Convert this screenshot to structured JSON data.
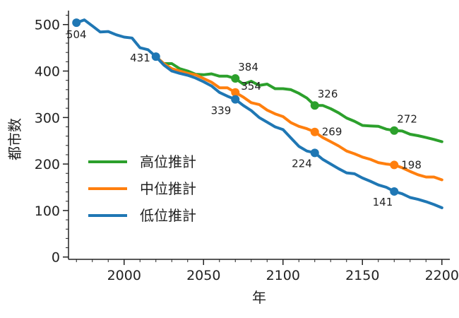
{
  "chart_data": {
    "type": "line",
    "title": "",
    "xlabel": "年",
    "ylabel": "都市数",
    "xlim": [
      1965,
      2205
    ],
    "ylim": [
      -5,
      530
    ],
    "x_ticks": [
      2000,
      2050,
      2100,
      2150,
      2200
    ],
    "y_ticks": [
      0,
      100,
      200,
      300,
      400,
      500
    ],
    "grid": false,
    "legend_position": "bottom-left",
    "series": [
      {
        "name": "高位推計",
        "color": "#2ca02c",
        "x": [
          2020,
          2025,
          2030,
          2035,
          2040,
          2045,
          2050,
          2055,
          2060,
          2065,
          2070,
          2075,
          2080,
          2085,
          2090,
          2095,
          2100,
          2105,
          2110,
          2115,
          2120,
          2125,
          2130,
          2135,
          2140,
          2145,
          2150,
          2155,
          2160,
          2165,
          2170,
          2175,
          2180,
          2185,
          2190,
          2195,
          2200
        ],
        "y": [
          431,
          416,
          416,
          405,
          400,
          393,
          392,
          394,
          389,
          389,
          384,
          372,
          378,
          369,
          372,
          362,
          362,
          360,
          352,
          342,
          326,
          326,
          319,
          310,
          299,
          292,
          283,
          282,
          281,
          275,
          272,
          271,
          264,
          261,
          257,
          253,
          248
        ],
        "markers": [
          {
            "x": 2070,
            "y": 384,
            "label": "384"
          },
          {
            "x": 2120,
            "y": 326,
            "label": "326"
          },
          {
            "x": 2170,
            "y": 272,
            "label": "272"
          }
        ]
      },
      {
        "name": "中位推計",
        "color": "#ff7f0e",
        "x": [
          2020,
          2025,
          2030,
          2035,
          2040,
          2045,
          2050,
          2055,
          2060,
          2065,
          2070,
          2075,
          2080,
          2085,
          2090,
          2095,
          2100,
          2105,
          2110,
          2115,
          2120,
          2125,
          2130,
          2135,
          2140,
          2145,
          2150,
          2155,
          2160,
          2165,
          2170,
          2175,
          2180,
          2185,
          2190,
          2195,
          2200
        ],
        "y": [
          431,
          416,
          405,
          400,
          395,
          392,
          384,
          376,
          364,
          364,
          354,
          344,
          332,
          328,
          316,
          308,
          302,
          289,
          281,
          276,
          269,
          257,
          248,
          239,
          228,
          222,
          215,
          210,
          203,
          200,
          198,
          192,
          184,
          177,
          172,
          172,
          166
        ],
        "markers": [
          {
            "x": 2070,
            "y": 354,
            "label": "354"
          },
          {
            "x": 2120,
            "y": 269,
            "label": "269"
          },
          {
            "x": 2170,
            "y": 198,
            "label": "198"
          }
        ]
      },
      {
        "name": "低位推計",
        "color": "#1f77b4",
        "x": [
          1970,
          1975,
          1980,
          1985,
          1990,
          1995,
          2000,
          2005,
          2010,
          2015,
          2020,
          2025,
          2030,
          2035,
          2040,
          2045,
          2050,
          2055,
          2060,
          2065,
          2070,
          2075,
          2080,
          2085,
          2090,
          2095,
          2100,
          2105,
          2110,
          2115,
          2120,
          2125,
          2130,
          2135,
          2140,
          2145,
          2150,
          2155,
          2160,
          2165,
          2170,
          2175,
          2180,
          2185,
          2190,
          2195,
          2200
        ],
        "y": [
          504,
          510,
          497,
          484,
          485,
          478,
          473,
          471,
          450,
          446,
          431,
          413,
          400,
          395,
          391,
          385,
          377,
          368,
          354,
          346,
          339,
          326,
          315,
          300,
          290,
          280,
          274,
          256,
          238,
          228,
          224,
          210,
          200,
          190,
          181,
          179,
          170,
          163,
          155,
          150,
          141,
          136,
          128,
          124,
          119,
          113,
          106
        ],
        "markers": [
          {
            "x": 1970,
            "y": 504,
            "label": "504"
          },
          {
            "x": 2020,
            "y": 431,
            "label": "431"
          },
          {
            "x": 2070,
            "y": 339,
            "label": "339"
          },
          {
            "x": 2120,
            "y": 224,
            "label": "224"
          },
          {
            "x": 2170,
            "y": 141,
            "label": "141"
          }
        ]
      }
    ]
  }
}
